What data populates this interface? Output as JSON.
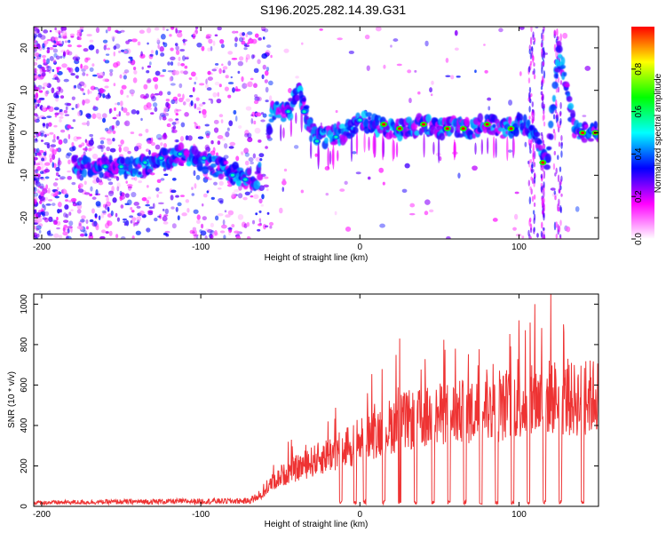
{
  "title": "S196.2025.282.14.39.G31",
  "chart_data": [
    {
      "type": "heatmap",
      "name": "spectrogram",
      "xlabel": "Height of straight line (km)",
      "ylabel": "Frequency (Hz)",
      "xlim": [
        -205,
        150
      ],
      "ylim": [
        -25,
        25
      ],
      "xticks": [
        -200,
        -100,
        0,
        100
      ],
      "yticks": [
        -20,
        -10,
        0,
        10,
        20
      ],
      "grid": false,
      "ridge": {
        "description_points_km_hz": [
          [
            -170,
            -8
          ],
          [
            -140,
            -8
          ],
          [
            -110,
            -5
          ],
          [
            -90,
            -8
          ],
          [
            -75,
            -10
          ],
          [
            -65,
            -12
          ],
          [
            -55,
            5
          ],
          [
            -45,
            5
          ],
          [
            -38,
            10
          ],
          [
            -30,
            0
          ],
          [
            -20,
            -1
          ],
          [
            -10,
            0
          ],
          [
            0,
            3
          ],
          [
            10,
            2
          ],
          [
            20,
            1
          ],
          [
            30,
            1
          ],
          [
            40,
            2
          ],
          [
            50,
            1
          ],
          [
            60,
            1
          ],
          [
            70,
            1
          ],
          [
            80,
            2
          ],
          [
            90,
            1
          ],
          [
            100,
            2
          ],
          [
            108,
            1
          ],
          [
            118,
            -7
          ],
          [
            125,
            20
          ],
          [
            135,
            0
          ],
          [
            150,
            0
          ]
        ],
        "peaks_km_hz": [
          [
            -160,
            -8
          ],
          [
            -150,
            -8
          ],
          [
            -135,
            -7
          ],
          [
            -125,
            -6
          ],
          [
            -113,
            -5
          ],
          [
            -98,
            -6
          ],
          [
            -80,
            -10
          ],
          [
            -72,
            -11
          ],
          [
            -45,
            5
          ],
          [
            -35,
            5
          ],
          [
            -27,
            -2
          ],
          [
            -15,
            -1
          ],
          [
            0,
            3
          ],
          [
            15,
            2
          ],
          [
            25,
            1
          ],
          [
            40,
            2
          ],
          [
            55,
            1
          ],
          [
            65,
            1
          ],
          [
            80,
            2
          ],
          [
            95,
            1
          ],
          [
            115,
            -7
          ],
          [
            140,
            0
          ],
          [
            148,
            0
          ]
        ]
      },
      "colorbar": {
        "label": "Normalized spectral amplitude",
        "range": [
          0.0,
          1.0
        ],
        "ticks": [
          0.0,
          0.2,
          0.4,
          0.6,
          0.8
        ],
        "tick_labels": [
          "0.0",
          "0.2",
          "0.4",
          "0.6",
          "0.8"
        ],
        "colors": [
          "#ffffff",
          "#ff00ff",
          "#0000ff",
          "#00ffff",
          "#00ff00",
          "#ffff00",
          "#ff0000"
        ]
      }
    },
    {
      "type": "line",
      "name": "snr",
      "xlabel": "Height of straight line (km)",
      "ylabel": "SNR (10 * v/v)",
      "xlim": [
        -205,
        150
      ],
      "ylim": [
        0,
        1050
      ],
      "xticks": [
        -200,
        -100,
        0,
        100
      ],
      "yticks": [
        0,
        200,
        400,
        600,
        800,
        1000
      ],
      "color": "#ee3333",
      "grid": false,
      "envelope": {
        "x": [
          -205,
          -150,
          -100,
          -70,
          -62,
          -55,
          -45,
          -30,
          -20,
          -10,
          0,
          10,
          20,
          30,
          40,
          50,
          60,
          70,
          80,
          90,
          100,
          110,
          120,
          130,
          140,
          150
        ],
        "y": [
          20,
          25,
          28,
          30,
          60,
          140,
          200,
          260,
          300,
          340,
          380,
          430,
          470,
          500,
          510,
          530,
          540,
          550,
          560,
          580,
          600,
          610,
          640,
          620,
          620,
          650
        ]
      },
      "dropouts_km": [
        -12,
        -3,
        3,
        15,
        25,
        35,
        46,
        56,
        66,
        76,
        86,
        96,
        106,
        116,
        126,
        140
      ],
      "spikes": [
        [
          -45,
          320
        ],
        [
          25,
          830
        ],
        [
          110,
          1000
        ],
        [
          120,
          1050
        ],
        [
          128,
          900
        ],
        [
          100,
          920
        ],
        [
          60,
          780
        ],
        [
          -20,
          420
        ]
      ]
    }
  ]
}
